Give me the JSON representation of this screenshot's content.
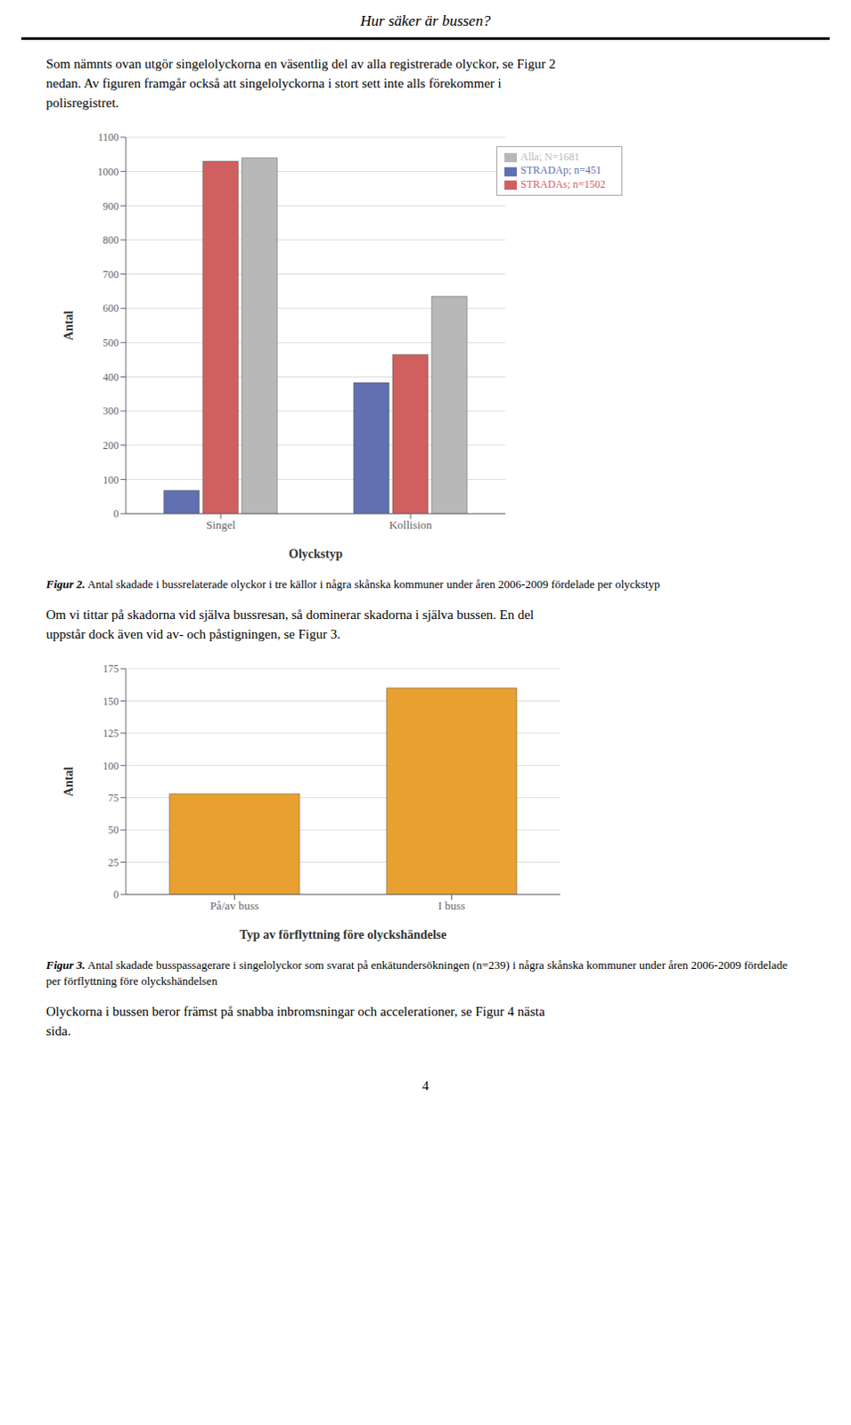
{
  "title": "Hur säker är bussen?",
  "annotations": [
    "Som nämnts ovan utgör singelolyckorna en väsentlig del av alla registrerade olyckor, se Figur 2",
    "nedan. Av figuren framgår också att singelolyckorna i stort sett inte alls förekommer i",
    "polisregistret."
  ],
  "chart_data": [
    {
      "type": "bar",
      "categories": [
        "Singel",
        "Kollision"
      ],
      "series": [
        {
          "name": "STRADAp; n=451",
          "values": [
            68,
            383
          ],
          "color": "#6070b0"
        },
        {
          "name": "STRADAs; n=1502",
          "values": [
            1030,
            465
          ],
          "color": "#d06060"
        },
        {
          "name": "Alla; N=1681",
          "values": [
            1040,
            635
          ],
          "color": "#b8b8b8"
        }
      ],
      "xlabel": "Olyckstyp",
      "ylabel": "Antal",
      "ylim": [
        0,
        1100
      ],
      "yticks": [
        0,
        100,
        200,
        300,
        400,
        500,
        600,
        700,
        800,
        900,
        1000,
        1100
      ],
      "grid": true,
      "legend": "upper right",
      "caption": [
        "Figur 2.",
        "Antal skadade i bussrelaterade olyckor i tre källor i några skånska kommuner under åren 2006-2009 fördelade per olyckstyp"
      ],
      "annotations": [
        "Om vi tittar på skadorna vid själva bussresan, så dominerar skadorna i själva bussen. En del",
        "uppstår dock även vid av- och påstigningen, se Figur 3."
      ]
    },
    {
      "type": "bar",
      "categories": [
        "På/av buss",
        "I buss"
      ],
      "values": [
        78,
        160
      ],
      "color": "#e8a030",
      "xlabel": "Typ av förflyttning före olyckshändelse",
      "ylabel": "Antal",
      "ylim": [
        0,
        175
      ],
      "yticks": [
        0,
        25,
        50,
        75,
        100,
        125,
        150,
        175
      ],
      "grid": true,
      "caption": [
        "Figur 3.",
        "Antal skadade busspassagerare i singelolyckor som svarat på enkätundersökningen (n=239) i några skånska kommuner under åren 2006-2009 fördelade per förflyttning före olyckshändelsen"
      ],
      "annotations": [
        "Olyckorna i bussen beror främst på snabba inbromsningar och accelerationer, se Figur 4 nästa",
        "sida."
      ]
    }
  ],
  "page_number": "4"
}
